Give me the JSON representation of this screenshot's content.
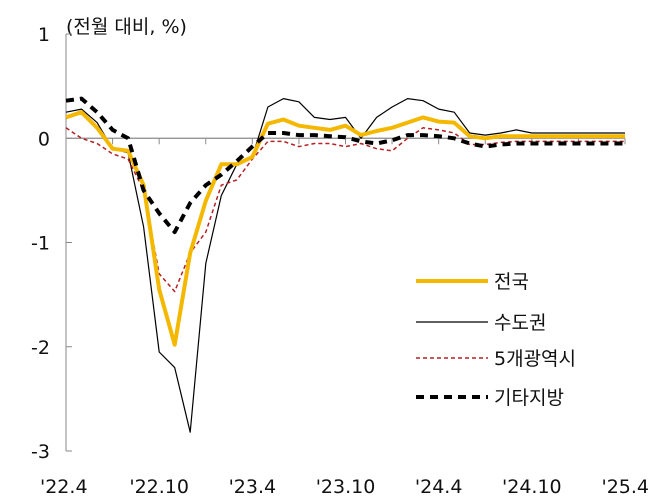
{
  "chart_data": {
    "type": "line",
    "unit_label": "(전월 대비, %)",
    "ylim": [
      -3,
      1
    ],
    "yticks": [
      1,
      0,
      -1,
      -2,
      -3
    ],
    "x_tick_labels": [
      "'22.4",
      "'22.10",
      "'23.4",
      "'23.10",
      "'24.4",
      "'24.10",
      "'25.4"
    ],
    "x_tick_indices": [
      0,
      6,
      12,
      18,
      24,
      30,
      36
    ],
    "x_count": 37,
    "legend_position": "bottom-right",
    "grid": false,
    "series": [
      {
        "name": "전국",
        "color": "#F5B800",
        "dash": "none",
        "width": 4,
        "values": [
          0.2,
          0.25,
          0.1,
          -0.1,
          -0.12,
          -0.45,
          -1.45,
          -1.98,
          -1.1,
          -0.6,
          -0.25,
          -0.25,
          -0.18,
          0.14,
          0.18,
          0.12,
          0.1,
          0.08,
          0.12,
          0.03,
          0.07,
          0.1,
          0.15,
          0.2,
          0.16,
          0.15,
          0.02,
          0.0,
          0.02,
          0.02,
          0.02,
          0.02,
          0.02,
          0.02,
          0.02,
          0.02,
          0.02
        ]
      },
      {
        "name": "수도권",
        "color": "#000000",
        "dash": "none",
        "width": 1.2,
        "values": [
          0.25,
          0.28,
          0.15,
          -0.1,
          -0.14,
          -0.85,
          -2.05,
          -2.2,
          -2.82,
          -1.2,
          -0.55,
          -0.25,
          -0.18,
          0.3,
          0.38,
          0.35,
          0.2,
          0.18,
          0.2,
          0.0,
          0.2,
          0.3,
          0.38,
          0.36,
          0.28,
          0.25,
          0.05,
          0.03,
          0.05,
          0.08,
          0.05,
          0.05,
          0.05,
          0.05,
          0.05,
          0.05,
          0.05
        ]
      },
      {
        "name": "5개광역시",
        "color": "#B42025",
        "dash": "4,3",
        "width": 1.5,
        "values": [
          0.1,
          0.0,
          -0.05,
          -0.15,
          -0.2,
          -0.5,
          -1.3,
          -1.47,
          -1.1,
          -0.9,
          -0.45,
          -0.4,
          -0.2,
          -0.03,
          -0.03,
          -0.08,
          -0.05,
          -0.05,
          -0.08,
          -0.05,
          -0.1,
          -0.12,
          0.0,
          0.1,
          0.08,
          0.05,
          -0.06,
          -0.06,
          -0.04,
          -0.03,
          -0.03,
          -0.03,
          -0.03,
          -0.03,
          -0.03,
          -0.03,
          -0.03
        ]
      },
      {
        "name": "기타지방",
        "color": "#000000",
        "dash": "8,6",
        "width": 4,
        "values": [
          0.36,
          0.38,
          0.25,
          0.08,
          0.0,
          -0.5,
          -0.72,
          -0.9,
          -0.62,
          -0.45,
          -0.35,
          -0.22,
          -0.08,
          0.05,
          0.05,
          0.03,
          0.03,
          0.02,
          0.01,
          -0.03,
          -0.05,
          -0.02,
          0.03,
          0.03,
          0.02,
          0.0,
          -0.05,
          -0.08,
          -0.06,
          -0.05,
          -0.05,
          -0.05,
          -0.05,
          -0.05,
          -0.05,
          -0.05,
          -0.05
        ]
      }
    ]
  }
}
